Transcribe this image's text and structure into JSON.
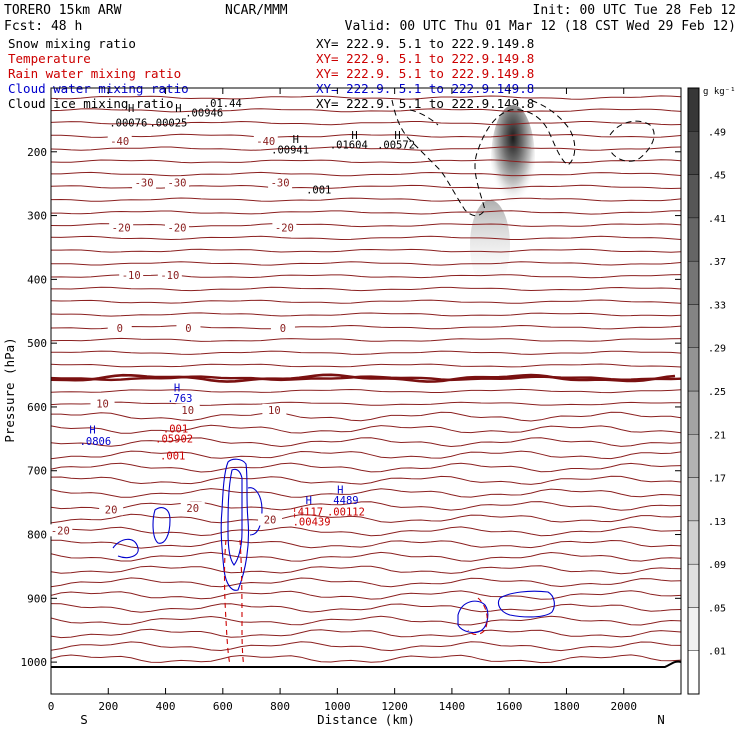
{
  "header": {
    "model": "TORERO  15km ARW",
    "center": "NCAR/MMM",
    "init": "Init: 00 UTC Tue 28 Feb 12",
    "fcst": "Fcst:  48 h",
    "valid": "Valid: 00 UTC Thu 01 Mar 12 (18 CST Wed 29 Feb 12)"
  },
  "legend": [
    {
      "label": "Snow mixing ratio",
      "color": "#000000",
      "xy": ""
    },
    {
      "label": "Temperature",
      "color": "#cc0000",
      "xy": "XY= 222.9.  5.1 to 222.9.149.8"
    },
    {
      "label": "Rain water mixing ratio",
      "color": "#cc0000",
      "xy": "XY= 222.9.  5.1 to 222.9.149.8"
    },
    {
      "label": "Cloud water mixing ratio",
      "color": "#0000cc",
      "xy": "XY= 222.9.  5.1 to 222.9.149.8"
    },
    {
      "label": "Cloud ice mixing ratio",
      "color": "#000000",
      "xy": "XY= 222.9.  5.1 to 222.9.149.8"
    }
  ],
  "legend_xy_first": "XY= 222.9.  5.1 to 222.9.149.8",
  "chart_data": {
    "type": "cross-section",
    "xlabel": "Distance (km)",
    "ylabel": "Pressure (hPa)",
    "xlim": [
      0,
      2200
    ],
    "ylim": [
      1050,
      100
    ],
    "xticks": [
      0,
      200,
      400,
      600,
      800,
      1000,
      1200,
      1400,
      1600,
      1800,
      2000
    ],
    "yticks": [
      200,
      300,
      400,
      500,
      600,
      700,
      800,
      900,
      1000
    ],
    "x_end_labels": {
      "left": "S",
      "right": "N"
    },
    "colorbar": {
      "unit": "g kg⁻¹",
      "ticks": [
        ".01",
        ".05",
        ".09",
        ".13",
        ".17",
        ".21",
        ".25",
        ".29",
        ".33",
        ".37",
        ".41",
        ".45",
        ".49"
      ],
      "values": [
        0.01,
        0.05,
        0.09,
        0.13,
        0.17,
        0.21,
        0.25,
        0.29,
        0.33,
        0.37,
        0.41,
        0.45,
        0.49
      ]
    },
    "temperature_contour_labels": [
      {
        "x": 480,
        "p": 185,
        "text": "-40"
      },
      {
        "x": 1500,
        "p": 185,
        "text": "-40"
      },
      {
        "x": 650,
        "p": 250,
        "text": "-30"
      },
      {
        "x": 880,
        "p": 250,
        "text": "-30"
      },
      {
        "x": 1600,
        "p": 250,
        "text": "-30"
      },
      {
        "x": 490,
        "p": 320,
        "text": "-20"
      },
      {
        "x": 880,
        "p": 320,
        "text": "-20"
      },
      {
        "x": 1630,
        "p": 320,
        "text": "-20"
      },
      {
        "x": 560,
        "p": 395,
        "text": "-10"
      },
      {
        "x": 830,
        "p": 395,
        "text": "-10"
      },
      {
        "x": 480,
        "p": 478,
        "text": "0"
      },
      {
        "x": 960,
        "p": 478,
        "text": "0"
      },
      {
        "x": 1620,
        "p": 478,
        "text": "0"
      },
      {
        "x": 360,
        "p": 596,
        "text": "10"
      },
      {
        "x": 955,
        "p": 606,
        "text": "10"
      },
      {
        "x": 1560,
        "p": 606,
        "text": "10"
      },
      {
        "x": 420,
        "p": 762,
        "text": "20"
      },
      {
        "x": 990,
        "p": 760,
        "text": "20"
      },
      {
        "x": 1530,
        "p": 778,
        "text": "20"
      },
      {
        "x": 65,
        "p": 795,
        "text": "-20"
      }
    ],
    "extrema_labels": [
      {
        "x": 560,
        "p": 138,
        "text": "H",
        "color": "#000000"
      },
      {
        "x": 890,
        "p": 138,
        "text": "H",
        "color": "#000000"
      },
      {
        "x": 1070,
        "p": 145,
        "text": ".00946",
        "color": "#000000"
      },
      {
        "x": 1200,
        "p": 130,
        "text": ".01.44",
        "color": "#000000"
      },
      {
        "x": 540,
        "p": 160,
        "text": ".00076",
        "color": "#000000"
      },
      {
        "x": 820,
        "p": 160,
        "text": ".00025",
        "color": "#000000"
      },
      {
        "x": 1710,
        "p": 186,
        "text": "H",
        "color": "#000000"
      },
      {
        "x": 1670,
        "p": 203,
        "text": ".00941",
        "color": "#000000"
      },
      {
        "x": 2120,
        "p": 180,
        "text": "H",
        "color": "#000000"
      },
      {
        "x": 2080,
        "p": 195,
        "text": ".01604",
        "color": "#000000"
      },
      {
        "x": 2420,
        "p": 180,
        "text": "H",
        "color": "#000000"
      },
      {
        "x": 2410,
        "p": 195,
        "text": ".00572",
        "color": "#000000"
      },
      {
        "x": 1870,
        "p": 265,
        "text": ".001",
        "color": "#000000"
      },
      {
        "x": 290,
        "p": 642,
        "text": "H",
        "color": "#0000cc"
      },
      {
        "x": 310,
        "p": 660,
        "text": ".0806",
        "color": "#0000cc"
      },
      {
        "x": 880,
        "p": 576,
        "text": "H",
        "color": "#0000cc"
      },
      {
        "x": 900,
        "p": 592,
        "text": ".763",
        "color": "#0000cc"
      },
      {
        "x": 870,
        "p": 640,
        "text": ".001",
        "color": "#cc0000"
      },
      {
        "x": 860,
        "p": 656,
        "text": ".05902",
        "color": "#cc0000"
      },
      {
        "x": 850,
        "p": 682,
        "text": ".001",
        "color": "#cc0000"
      },
      {
        "x": 1800,
        "p": 752,
        "text": "H",
        "color": "#0000cc"
      },
      {
        "x": 1790,
        "p": 770,
        "text": "¦4117",
        "color": "#cc0000"
      },
      {
        "x": 1820,
        "p": 786,
        "text": ".00439",
        "color": "#cc0000"
      },
      {
        "x": 2020,
        "p": 736,
        "text": "H",
        "color": "#0000cc"
      },
      {
        "x": 2060,
        "p": 752,
        "text": "4489",
        "color": "#0000cc"
      },
      {
        "x": 2060,
        "p": 770,
        "text": ".00112",
        "color": "#cc0000"
      }
    ]
  }
}
